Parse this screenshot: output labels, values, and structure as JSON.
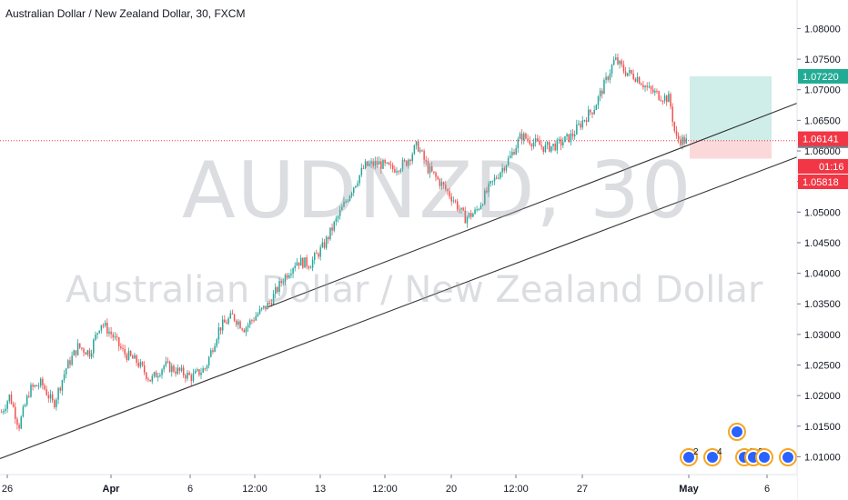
{
  "header": {
    "title": "Australian Dollar / New Zealand Dollar, 30, FXCM"
  },
  "watermark": {
    "symbol": "AUDNZD, 30",
    "name": "Australian Dollar / New Zealand Dollar"
  },
  "colors": {
    "up": "#26a69a",
    "down": "#ef5350",
    "line": "#333333",
    "target": "#22ab94",
    "stop": "#f23645",
    "current": "#787b86"
  },
  "chart_data": {
    "type": "candlestick",
    "title": "Australian Dollar / New Zealand Dollar, 30, FXCM",
    "ylim": [
      1.0062,
      1.082
    ],
    "y_ticks": [
      "1.08000",
      "1.07500",
      "1.07000",
      "1.06500",
      "1.06000",
      "1.05500",
      "1.05000",
      "1.04500",
      "1.04000",
      "1.03500",
      "1.03000",
      "1.02500",
      "1.02000",
      "1.01500",
      "1.01000"
    ],
    "x_tick_labels": [
      "26",
      "Apr",
      "6",
      "12:00",
      "13",
      "12:00",
      "20",
      "12:00",
      "27",
      "May",
      "6"
    ],
    "price_series": [
      [
        0,
        1.017
      ],
      [
        10,
        1.02
      ],
      [
        20,
        1.015
      ],
      [
        32,
        1.021
      ],
      [
        45,
        1.022
      ],
      [
        58,
        1.0185
      ],
      [
        72,
        1.0245
      ],
      [
        85,
        1.028
      ],
      [
        98,
        1.027
      ],
      [
        110,
        1.032
      ],
      [
        122,
        1.03
      ],
      [
        135,
        1.027
      ],
      [
        150,
        1.0255
      ],
      [
        165,
        1.0225
      ],
      [
        180,
        1.025
      ],
      [
        195,
        1.024
      ],
      [
        210,
        1.023
      ],
      [
        225,
        1.0245
      ],
      [
        240,
        1.031
      ],
      [
        255,
        1.033
      ],
      [
        268,
        1.031
      ],
      [
        280,
        1.033
      ],
      [
        295,
        1.035
      ],
      [
        310,
        1.039
      ],
      [
        325,
        1.042
      ],
      [
        340,
        1.0415
      ],
      [
        355,
        1.0445
      ],
      [
        370,
        1.049
      ],
      [
        385,
        1.0535
      ],
      [
        400,
        1.0575
      ],
      [
        415,
        1.058
      ],
      [
        430,
        1.057
      ],
      [
        445,
        1.058
      ],
      [
        458,
        1.061
      ],
      [
        470,
        1.057
      ],
      [
        485,
        1.0545
      ],
      [
        498,
        1.052
      ],
      [
        510,
        1.049
      ],
      [
        522,
        1.05
      ],
      [
        535,
        1.0535
      ],
      [
        548,
        1.0565
      ],
      [
        560,
        1.059
      ],
      [
        572,
        1.0625
      ],
      [
        585,
        1.0615
      ],
      [
        598,
        1.0605
      ],
      [
        612,
        1.061
      ],
      [
        628,
        1.0625
      ],
      [
        640,
        1.065
      ],
      [
        652,
        1.067
      ],
      [
        664,
        1.071
      ],
      [
        675,
        1.075
      ],
      [
        686,
        1.073
      ],
      [
        700,
        1.072
      ],
      [
        712,
        1.07
      ],
      [
        725,
        1.069
      ],
      [
        735,
        1.0685
      ],
      [
        742,
        1.062
      ],
      [
        748,
        1.0618
      ],
      [
        755,
        1.0615
      ]
    ],
    "trendlines": [
      {
        "from": [
          "12:00 (Apr 12)",
          1.0345
        ],
        "to": [
          "May 6",
          1.0678
        ]
      },
      {
        "from": [
          "Mar 26",
          1.0097
        ],
        "to": [
          "May 6",
          1.059
        ]
      }
    ],
    "position": {
      "type": "long",
      "entry": 1.06167,
      "target": 1.0722,
      "stop": 1.06141
    },
    "price_labels": [
      {
        "value": "1.07220",
        "kind": "target"
      },
      {
        "value": "1.06167",
        "kind": "current"
      },
      {
        "value": "1.06141",
        "kind": "stop"
      },
      {
        "value": "01:16",
        "kind": "stop"
      },
      {
        "value": "1.05818",
        "kind": "stop"
      }
    ],
    "events": [
      {
        "count": "2"
      },
      {
        "count": "4"
      },
      {
        "count": ""
      },
      {
        "count": "2"
      },
      {
        "count": "2"
      },
      {
        "count": ""
      },
      {
        "count": ""
      }
    ]
  }
}
